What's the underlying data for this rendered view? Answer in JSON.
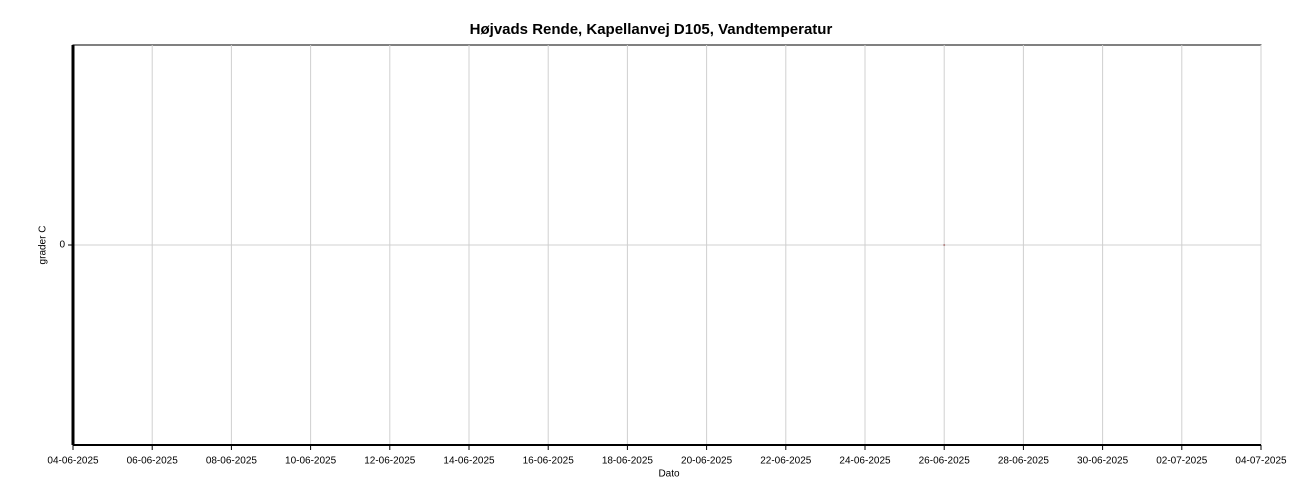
{
  "chart_data": {
    "type": "line",
    "title": "Højvads Rende, Kapellanvej D105, Vandtemperatur",
    "x_label": "Dato",
    "y_label": "grader C",
    "xlim": [
      "04-06-2025",
      "04-07-2025"
    ],
    "xticks": [
      "04-06-2025",
      "06-06-2025",
      "08-06-2025",
      "10-06-2025",
      "12-06-2025",
      "14-06-2025",
      "16-06-2025",
      "18-06-2025",
      "20-06-2025",
      "22-06-2025",
      "24-06-2025",
      "26-06-2025",
      "28-06-2025",
      "30-06-2025",
      "02-07-2025",
      "04-07-2025"
    ],
    "ylim": [
      -1,
      1
    ],
    "yticks": [
      0
    ],
    "grid": true,
    "x": [
      "26-06-2025"
    ],
    "series": [
      {
        "color": "#b08080",
        "values": [
          0
        ]
      }
    ]
  }
}
